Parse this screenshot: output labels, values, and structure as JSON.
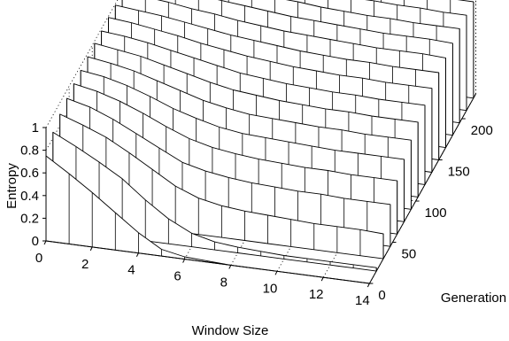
{
  "chart_data": {
    "type": "surface",
    "title": "",
    "xlabel": "Window Size",
    "ylabel": "Generation",
    "zlabel": "Entropy",
    "x_ticks": [
      "0",
      "2",
      "4",
      "6",
      "8",
      "10",
      "12",
      "14"
    ],
    "y_ticks": [
      "0",
      "50",
      "100",
      "150",
      "200"
    ],
    "z_ticks": [
      "0",
      "0.2",
      "0.4",
      "0.6",
      "0.8",
      "1"
    ],
    "xlim": [
      0,
      14
    ],
    "ylim": [
      0,
      230
    ],
    "zlim": [
      0,
      1
    ],
    "grid": true,
    "window_size": [
      0,
      1,
      2,
      3,
      4,
      5,
      6,
      7,
      8,
      9,
      10,
      11,
      12,
      13,
      14
    ],
    "series": [
      {
        "generation": 0,
        "entropy": [
          0.75,
          0.62,
          0.48,
          0.33,
          0.18,
          0.06,
          0.02,
          0.01,
          0.0,
          0.0,
          0.0,
          0.0,
          0.0,
          0.0,
          0.0
        ]
      },
      {
        "generation": 15,
        "entropy": [
          0.85,
          0.75,
          0.64,
          0.52,
          0.36,
          0.22,
          0.12,
          0.07,
          0.05,
          0.04,
          0.03,
          0.03,
          0.03,
          0.03,
          0.03
        ]
      },
      {
        "generation": 30,
        "entropy": [
          0.9,
          0.83,
          0.75,
          0.64,
          0.52,
          0.4,
          0.32,
          0.28,
          0.26,
          0.25,
          0.24,
          0.23,
          0.23,
          0.23,
          0.22
        ]
      },
      {
        "generation": 45,
        "entropy": [
          0.93,
          0.88,
          0.8,
          0.7,
          0.6,
          0.5,
          0.45,
          0.42,
          0.4,
          0.39,
          0.38,
          0.38,
          0.37,
          0.37,
          0.37
        ]
      },
      {
        "generation": 60,
        "entropy": [
          0.95,
          0.91,
          0.85,
          0.77,
          0.68,
          0.6,
          0.55,
          0.52,
          0.5,
          0.49,
          0.48,
          0.48,
          0.47,
          0.47,
          0.47
        ]
      },
      {
        "generation": 75,
        "entropy": [
          0.96,
          0.93,
          0.88,
          0.81,
          0.73,
          0.67,
          0.62,
          0.59,
          0.58,
          0.57,
          0.56,
          0.55,
          0.55,
          0.55,
          0.55
        ]
      },
      {
        "generation": 90,
        "entropy": [
          0.97,
          0.94,
          0.9,
          0.84,
          0.78,
          0.72,
          0.68,
          0.65,
          0.64,
          0.63,
          0.62,
          0.62,
          0.61,
          0.61,
          0.61
        ]
      },
      {
        "generation": 105,
        "entropy": [
          0.98,
          0.95,
          0.92,
          0.87,
          0.82,
          0.77,
          0.73,
          0.71,
          0.69,
          0.68,
          0.67,
          0.67,
          0.66,
          0.66,
          0.66
        ]
      },
      {
        "generation": 120,
        "entropy": [
          0.98,
          0.96,
          0.93,
          0.89,
          0.85,
          0.81,
          0.77,
          0.75,
          0.73,
          0.72,
          0.71,
          0.71,
          0.7,
          0.7,
          0.7
        ]
      },
      {
        "generation": 135,
        "entropy": [
          0.99,
          0.97,
          0.94,
          0.91,
          0.87,
          0.84,
          0.81,
          0.79,
          0.77,
          0.76,
          0.75,
          0.75,
          0.74,
          0.74,
          0.74
        ]
      },
      {
        "generation": 150,
        "entropy": [
          0.99,
          0.97,
          0.95,
          0.92,
          0.89,
          0.86,
          0.84,
          0.82,
          0.8,
          0.79,
          0.78,
          0.78,
          0.77,
          0.77,
          0.77
        ]
      },
      {
        "generation": 165,
        "entropy": [
          0.99,
          0.98,
          0.96,
          0.93,
          0.91,
          0.88,
          0.86,
          0.84,
          0.83,
          0.82,
          0.81,
          0.8,
          0.8,
          0.8,
          0.79
        ]
      },
      {
        "generation": 180,
        "entropy": [
          1.0,
          0.98,
          0.96,
          0.94,
          0.92,
          0.9,
          0.88,
          0.86,
          0.85,
          0.84,
          0.83,
          0.82,
          0.82,
          0.82,
          0.81
        ]
      },
      {
        "generation": 195,
        "entropy": [
          1.0,
          0.98,
          0.97,
          0.95,
          0.93,
          0.91,
          0.89,
          0.88,
          0.86,
          0.85,
          0.84,
          0.84,
          0.83,
          0.83,
          0.83
        ]
      },
      {
        "generation": 210,
        "entropy": [
          1.0,
          0.99,
          0.97,
          0.95,
          0.94,
          0.92,
          0.9,
          0.89,
          0.87,
          0.86,
          0.86,
          0.85,
          0.85,
          0.84,
          0.84
        ]
      },
      {
        "generation": 225,
        "entropy": [
          1.0,
          0.99,
          0.98,
          0.96,
          0.94,
          0.93,
          0.91,
          0.9,
          0.88,
          0.87,
          0.87,
          0.86,
          0.86,
          0.85,
          0.85
        ]
      }
    ]
  }
}
